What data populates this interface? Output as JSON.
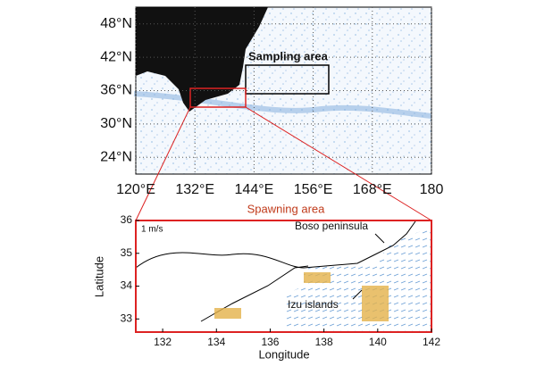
{
  "top_map": {
    "xlim": [
      120,
      180
    ],
    "ylim": [
      21,
      51
    ],
    "xticks": [
      {
        "value": 120,
        "label": "120°E"
      },
      {
        "value": 132,
        "label": "132°E"
      },
      {
        "value": 144,
        "label": "144°E"
      },
      {
        "value": 156,
        "label": "156°E"
      },
      {
        "value": 168,
        "label": "168°E"
      },
      180
    ],
    "yticks": [
      {
        "value": 48,
        "label": "48°N"
      },
      {
        "value": 42,
        "label": "42°N"
      },
      {
        "value": 36,
        "label": "36°N"
      },
      {
        "value": 30,
        "label": "30°N"
      },
      {
        "value": 24,
        "label": "24°N"
      }
    ],
    "box_label": "Sampling area"
  },
  "inset_title": "Spawning area",
  "bottom_map": {
    "xlim": [
      131,
      142
    ],
    "ylim": [
      32.6,
      36
    ],
    "xticks": [
      132,
      134,
      136,
      138,
      140,
      142
    ],
    "yticks": [
      33,
      34,
      35,
      36
    ],
    "xlabel": "Longitude",
    "ylabel": "Latitude",
    "scale_label": "1 m/s",
    "annotations": [
      "Boso peninsula",
      "Izu islands"
    ]
  }
}
